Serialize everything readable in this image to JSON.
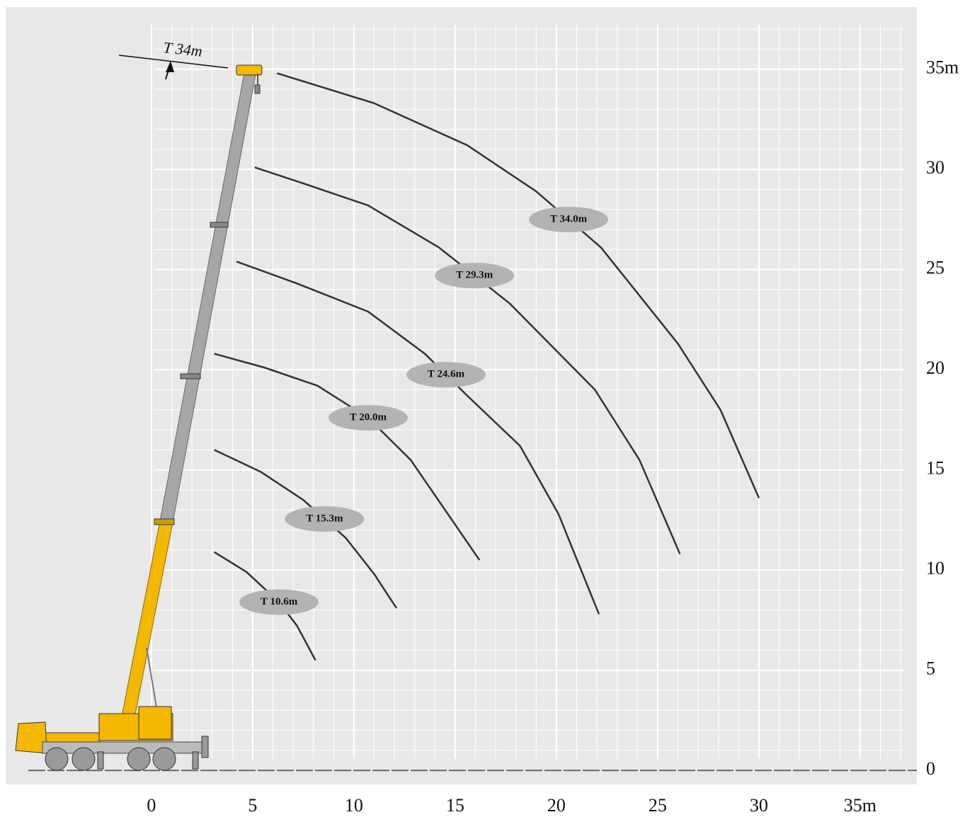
{
  "chart_data": {
    "type": "line",
    "annotation": "T 34m",
    "xlim": [
      -7.2,
      37.8
    ],
    "ylim": [
      -0.7,
      38.1
    ],
    "xticks": [
      0,
      5,
      10,
      15,
      20,
      25,
      30,
      {
        "value": 35,
        "label": "35m"
      }
    ],
    "yticks": [
      0,
      5,
      10,
      15,
      20,
      25,
      30,
      {
        "value": 35,
        "label": "35m"
      }
    ],
    "grid": true,
    "color": "#333333",
    "series": [
      {
        "name": "T 34.0m",
        "x": [
          6.2,
          11,
          15.6,
          19,
          22.2,
          26,
          28.1,
          30
        ],
        "values": [
          34.8,
          33.3,
          31.2,
          28.9,
          26.1,
          21.3,
          18,
          13.6
        ]
      },
      {
        "name": "T 29.3m",
        "x": [
          5.1,
          7.5,
          10.7,
          14.2,
          17.7,
          21.9,
          24.1,
          26.1
        ],
        "values": [
          30.1,
          29.3,
          28.2,
          26.1,
          23.3,
          19,
          15.5,
          10.8
        ]
      },
      {
        "name": "T 24.6m",
        "x": [
          4.2,
          7.2,
          10.7,
          13.5,
          15.6,
          18.2,
          20.1,
          22.1
        ],
        "values": [
          25.4,
          24.3,
          22.9,
          20.8,
          18.7,
          16.2,
          12.8,
          7.8
        ]
      },
      {
        "name": "T 20.0m",
        "x": [
          3.1,
          5.6,
          8.2,
          10.7,
          12.8,
          14.5,
          16.2
        ],
        "values": [
          20.8,
          20.1,
          19.2,
          17.6,
          15.5,
          13,
          10.5
        ]
      },
      {
        "name": "T 15.3m",
        "x": [
          3.1,
          5.4,
          7.5,
          9.6,
          11,
          12.1
        ],
        "values": [
          16,
          14.9,
          13.5,
          11.6,
          9.8,
          8.1
        ]
      },
      {
        "name": "T 10.6m",
        "x": [
          3.1,
          4.7,
          6.3,
          7.2,
          8.1
        ],
        "values": [
          10.9,
          9.9,
          8.4,
          7.2,
          5.5
        ]
      }
    ]
  }
}
